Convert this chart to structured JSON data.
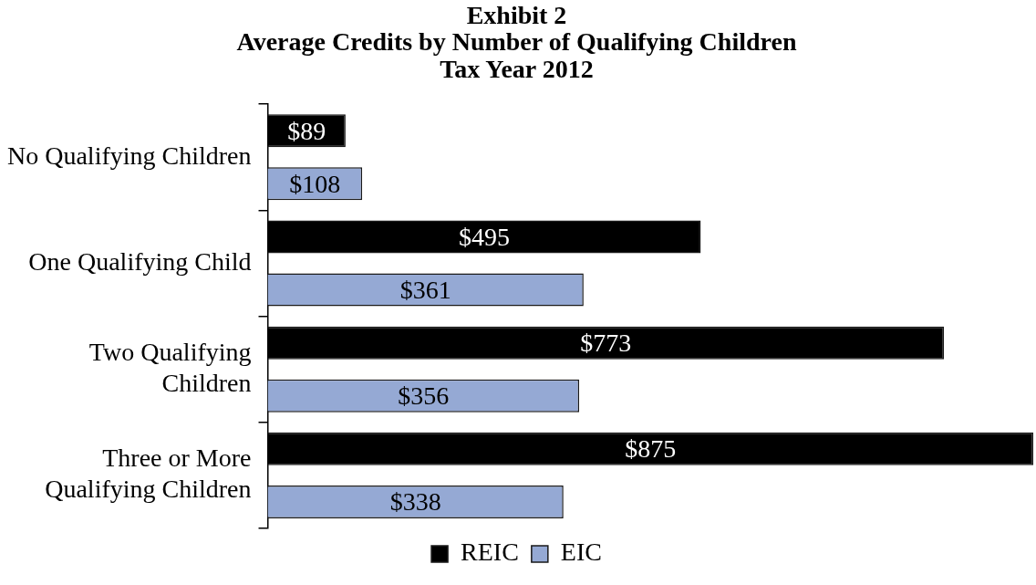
{
  "chart_data": {
    "type": "bar",
    "orientation": "horizontal",
    "title": "Exhibit 2",
    "subtitle": "Average Credits by Number of Qualifying Children\nTax Year 2012",
    "categories": [
      "No Qualifying Children",
      "One Qualifying Child",
      "Two Qualifying Children",
      "Three or More Qualifying Children"
    ],
    "series": [
      {
        "name": "REIC",
        "color": "#000000",
        "values": [
          89,
          495,
          773,
          875
        ],
        "value_labels": [
          "$89",
          "$495",
          "$773",
          "$875"
        ]
      },
      {
        "name": "EIC",
        "color": "#95a9d4",
        "values": [
          108,
          361,
          356,
          338
        ],
        "value_labels": [
          "$108",
          "$361",
          "$356",
          "$338"
        ]
      }
    ],
    "legend": "bottom",
    "grid": false,
    "tick_labels": "y"
  }
}
